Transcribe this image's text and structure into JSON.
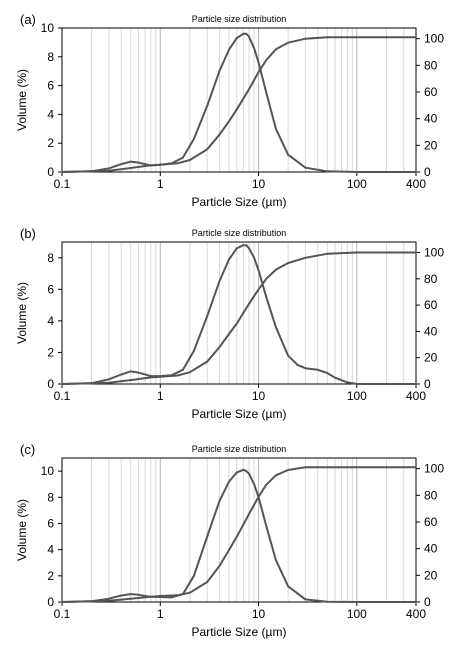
{
  "panels": [
    {
      "label": "(a)",
      "chart_data": {
        "type": "line",
        "title": "Particle size distribution",
        "xlabel": "Particle Size (µm)",
        "ylabel": "Volume (%)",
        "x_scale": "log",
        "xlim": [
          0.1,
          400
        ],
        "ylim": [
          0,
          10
        ],
        "ylim_right": [
          0,
          108
        ],
        "x_tick_labels": [
          "0.1",
          "1",
          "10",
          "100",
          "400"
        ],
        "y_tick_labels": [
          "0",
          "2",
          "4",
          "6",
          "8",
          "10"
        ],
        "y2_tick_labels": [
          "0",
          "20",
          "40",
          "60",
          "80",
          "100"
        ],
        "grid": "vertical",
        "series": [
          {
            "axis": "left",
            "color": "#555555",
            "x": [
              0.1,
              0.2,
              0.3,
              0.4,
              0.5,
              0.6,
              0.8,
              1,
              1.3,
              1.7,
              2.2,
              3,
              4,
              5,
              6,
              7,
              7.5,
              8,
              9,
              10,
              12,
              15,
              20,
              30,
              50,
              100,
              200,
              400
            ],
            "y": [
              0,
              0.05,
              0.25,
              0.55,
              0.72,
              0.65,
              0.45,
              0.5,
              0.6,
              1,
              2.3,
              4.6,
              7,
              8.5,
              9.3,
              9.6,
              9.6,
              9.4,
              8.6,
              7.6,
              5.5,
              3,
              1.2,
              0.3,
              0.05,
              0,
              0,
              0
            ]
          },
          {
            "axis": "right",
            "color": "#555555",
            "x": [
              0.1,
              0.3,
              0.5,
              0.8,
              1,
              1.5,
              2,
              3,
              4,
              5,
              6,
              7,
              8,
              10,
              12,
              15,
              20,
              30,
              50,
              100,
              200,
              400
            ],
            "y": [
              0,
              1,
              3,
              5,
              5.5,
              6.5,
              9,
              17,
              28,
              38,
              47,
              55,
              62,
              75,
              84,
              92,
              97,
              100,
              101,
              101,
              101,
              101
            ]
          }
        ]
      }
    },
    {
      "label": "(b)",
      "chart_data": {
        "type": "line",
        "title": "Particle size distribution",
        "xlabel": "Particle Size (µm)",
        "ylabel": "Volume (%)",
        "x_scale": "log",
        "xlim": [
          0.1,
          400
        ],
        "ylim": [
          0,
          9
        ],
        "ylim_right": [
          0,
          108
        ],
        "x_tick_labels": [
          "0.1",
          "1",
          "10",
          "100",
          "400"
        ],
        "y_tick_labels": [
          "0",
          "2",
          "4",
          "6",
          "8"
        ],
        "y2_tick_labels": [
          "0",
          "20",
          "40",
          "60",
          "80",
          "100"
        ],
        "grid": "vertical",
        "series": [
          {
            "axis": "left",
            "color": "#555555",
            "x": [
              0.1,
              0.2,
              0.3,
              0.4,
              0.5,
              0.6,
              0.8,
              1,
              1.3,
              1.7,
              2.2,
              3,
              4,
              5,
              6,
              7,
              7.5,
              8,
              9,
              10,
              12,
              15,
              20,
              25,
              30,
              40,
              50,
              60,
              80,
              100,
              200,
              400
            ],
            "y": [
              0,
              0.05,
              0.3,
              0.6,
              0.8,
              0.72,
              0.5,
              0.5,
              0.55,
              0.9,
              2.1,
              4.3,
              6.5,
              7.9,
              8.6,
              8.8,
              8.8,
              8.6,
              8,
              7.2,
              5.5,
              3.6,
              1.8,
              1.2,
              1,
              0.9,
              0.7,
              0.4,
              0.1,
              0,
              0,
              0
            ]
          },
          {
            "axis": "right",
            "color": "#555555",
            "x": [
              0.1,
              0.3,
              0.5,
              0.8,
              1,
              1.5,
              2,
              3,
              4,
              5,
              6,
              7,
              8,
              10,
              12,
              15,
              20,
              30,
              50,
              100,
              200,
              400
            ],
            "y": [
              0,
              1,
              3,
              5,
              5.5,
              6.5,
              9,
              17,
              28,
              38,
              46,
              54,
              61,
              72,
              80,
              87,
              92,
              96,
              99,
              100,
              100,
              100
            ]
          }
        ]
      }
    },
    {
      "label": "(c)",
      "chart_data": {
        "type": "line",
        "title": "Particle size distribution",
        "xlabel": "Particle Size (µm)",
        "ylabel": "Volume (%)",
        "x_scale": "log",
        "xlim": [
          0.1,
          400
        ],
        "ylim": [
          0,
          11
        ],
        "ylim_right": [
          0,
          108
        ],
        "x_tick_labels": [
          "0.1",
          "1",
          "10",
          "100",
          "400"
        ],
        "y_tick_labels": [
          "0",
          "2",
          "4",
          "6",
          "8",
          "10"
        ],
        "y2_tick_labels": [
          "0",
          "20",
          "40",
          "60",
          "80",
          "100"
        ],
        "grid": "vertical",
        "series": [
          {
            "axis": "left",
            "color": "#555555",
            "x": [
              0.1,
              0.2,
              0.3,
              0.4,
              0.5,
              0.6,
              0.8,
              1,
              1.3,
              1.7,
              2.2,
              3,
              4,
              5,
              6,
              7,
              7.5,
              8,
              9,
              10,
              12,
              15,
              20,
              30,
              50,
              100,
              200,
              400
            ],
            "y": [
              0,
              0.05,
              0.25,
              0.5,
              0.6,
              0.55,
              0.4,
              0.38,
              0.35,
              0.6,
              2,
              5,
              7.7,
              9.2,
              9.9,
              10.1,
              10,
              9.8,
              9,
              8,
              5.8,
              3.2,
              1.2,
              0.2,
              0.02,
              0,
              0,
              0
            ]
          },
          {
            "axis": "right",
            "color": "#555555",
            "x": [
              0.1,
              0.3,
              0.5,
              0.8,
              1,
              1.5,
              2,
              3,
              4,
              5,
              6,
              7,
              8,
              10,
              12,
              15,
              20,
              30,
              50,
              100,
              200,
              400
            ],
            "y": [
              0,
              1,
              2.5,
              4,
              4.5,
              5,
              7,
              15,
              27,
              39,
              49,
              58,
              66,
              79,
              88,
              95,
              99,
              101,
              101,
              101,
              101,
              101
            ]
          }
        ]
      }
    }
  ]
}
